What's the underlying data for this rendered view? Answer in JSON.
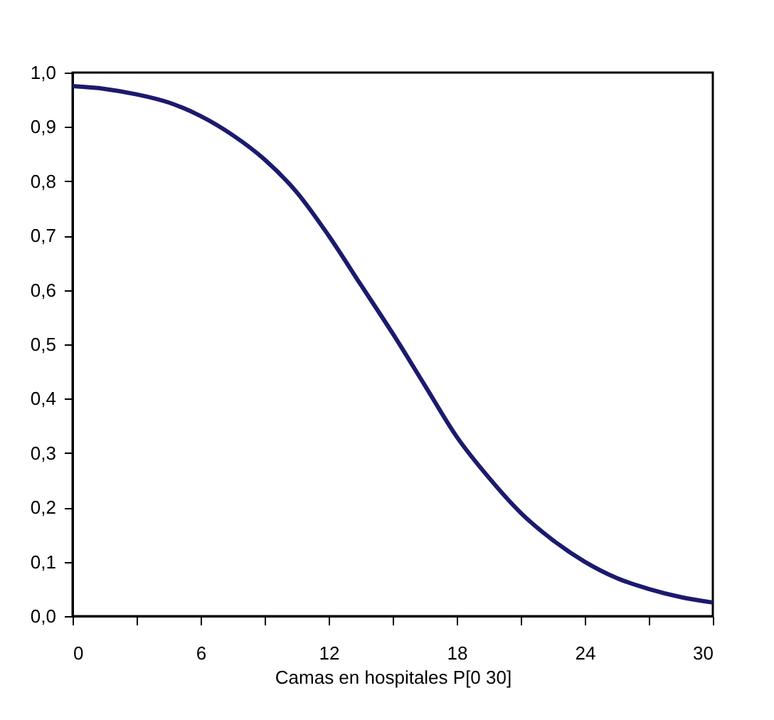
{
  "chart_data": {
    "type": "line",
    "xlabel": "Camas en hospitales P[0 30]",
    "x": [
      0,
      1.5,
      3,
      4.5,
      6,
      7.5,
      9,
      10.5,
      12,
      13.5,
      15,
      16.5,
      18,
      19.5,
      21,
      22.5,
      24,
      25.5,
      27,
      28.5,
      30
    ],
    "series": [
      {
        "color": "#1c1a6e",
        "values": [
          0.975,
          0.97,
          0.96,
          0.945,
          0.92,
          0.885,
          0.84,
          0.78,
          0.7,
          0.61,
          0.52,
          0.425,
          0.33,
          0.255,
          0.19,
          0.14,
          0.1,
          0.07,
          0.05,
          0.035,
          0.025
        ]
      }
    ],
    "xlim": [
      0,
      30
    ],
    "ylim": [
      0,
      1
    ],
    "xticks": [
      0,
      {
        "value": 3,
        "label": null
      },
      6,
      {
        "value": 9,
        "label": null
      },
      12,
      {
        "value": 15,
        "label": null
      },
      18,
      {
        "value": 21,
        "label": null
      },
      24,
      {
        "value": 27,
        "label": null
      },
      30
    ],
    "yticks": [
      {
        "value": 0,
        "label": "0,0"
      },
      {
        "value": 0.1,
        "label": "0,1"
      },
      {
        "value": 0.2,
        "label": "0,2"
      },
      {
        "value": 0.3,
        "label": "0,3"
      },
      {
        "value": 0.4,
        "label": "0,4"
      },
      {
        "value": 0.5,
        "label": "0,5"
      },
      {
        "value": 0.6,
        "label": "0,6"
      },
      {
        "value": 0.7,
        "label": "0,7"
      },
      {
        "value": 0.8,
        "label": "0,8"
      },
      {
        "value": 0.9,
        "label": "0,9"
      },
      {
        "value": 1,
        "label": "1,0"
      }
    ],
    "grid": false,
    "marker": "none",
    "line_style": "solid"
  }
}
